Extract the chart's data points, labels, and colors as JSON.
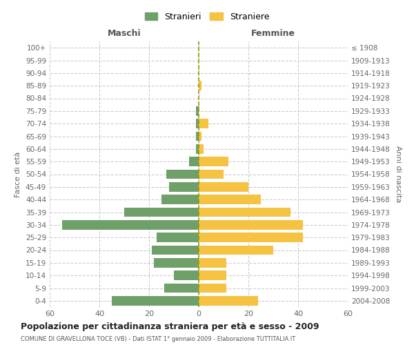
{
  "age_groups": [
    "0-4",
    "5-9",
    "10-14",
    "15-19",
    "20-24",
    "25-29",
    "30-34",
    "35-39",
    "40-44",
    "45-49",
    "50-54",
    "55-59",
    "60-64",
    "65-69",
    "70-74",
    "75-79",
    "80-84",
    "85-89",
    "90-94",
    "95-99",
    "100+"
  ],
  "birth_years": [
    "2004-2008",
    "1999-2003",
    "1994-1998",
    "1989-1993",
    "1984-1988",
    "1979-1983",
    "1974-1978",
    "1969-1973",
    "1964-1968",
    "1959-1963",
    "1954-1958",
    "1949-1953",
    "1944-1948",
    "1939-1943",
    "1934-1938",
    "1929-1933",
    "1924-1928",
    "1919-1923",
    "1914-1918",
    "1909-1913",
    "≤ 1908"
  ],
  "maschi": [
    35,
    14,
    10,
    18,
    19,
    17,
    55,
    30,
    15,
    12,
    13,
    4,
    1,
    1,
    1,
    1,
    0,
    0,
    0,
    0,
    0
  ],
  "femmine": [
    24,
    11,
    11,
    11,
    30,
    42,
    42,
    37,
    25,
    20,
    10,
    12,
    2,
    1,
    4,
    0,
    0,
    1,
    0,
    0,
    0
  ],
  "male_color": "#6fa06a",
  "female_color": "#f5c242",
  "center_line_color": "#999900",
  "grid_color": "#cccccc",
  "background_color": "#ffffff",
  "title": "Popolazione per cittadinanza straniera per età e sesso - 2009",
  "subtitle": "COMUNE DI GRAVELLONA TOCE (VB) - Dati ISTAT 1° gennaio 2009 - Elaborazione TUTTITALIA.IT",
  "ylabel_left": "Fasce di età",
  "ylabel_right": "Anni di nascita",
  "xlabel_left": "Maschi",
  "xlabel_top_right": "Femmine",
  "legend_male": "Stranieri",
  "legend_female": "Straniere",
  "xlim": 60,
  "bar_height": 0.75
}
